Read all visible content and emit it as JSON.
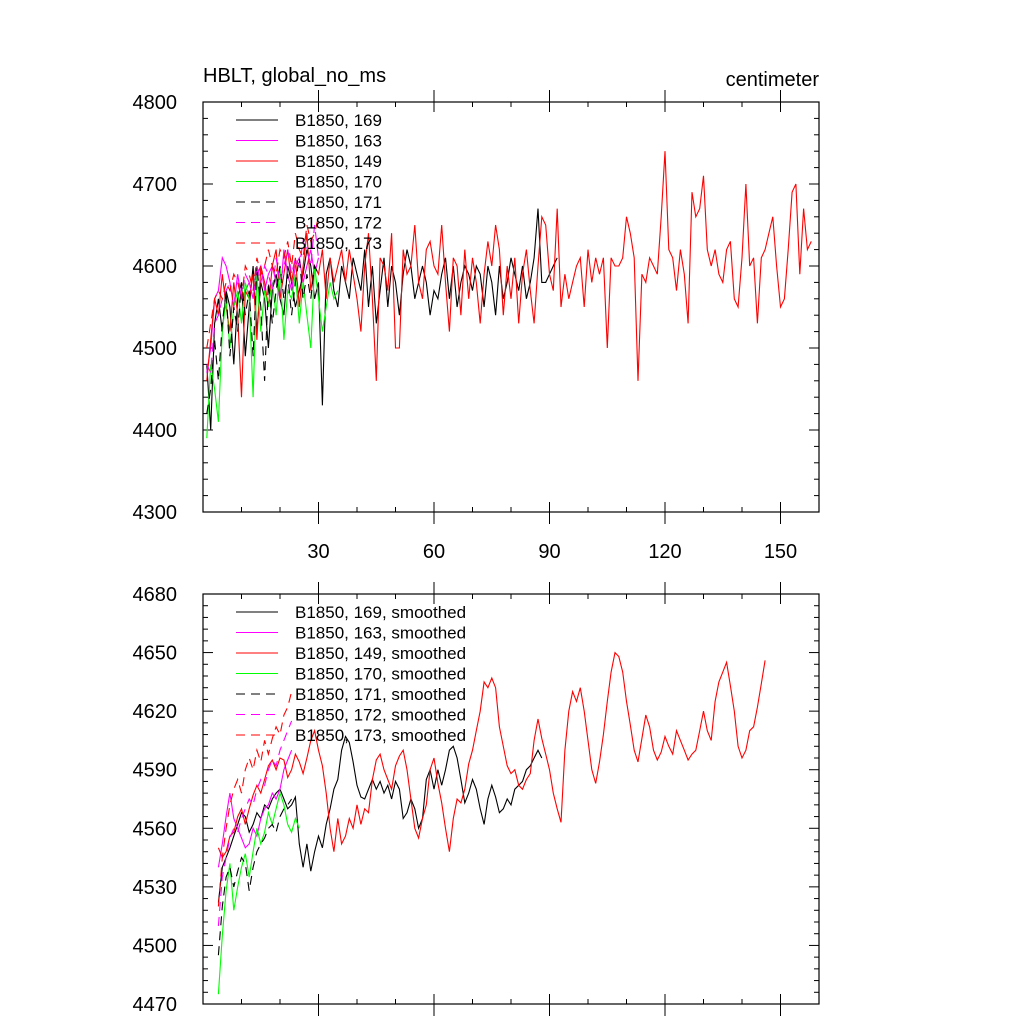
{
  "chart_data": [
    {
      "type": "line",
      "title_left": "HBLT, global_no_ms",
      "title_right": "centimeter",
      "xlim": [
        0,
        160
      ],
      "ylim": [
        4300,
        4800
      ],
      "xticks": [
        30,
        60,
        90,
        120,
        150
      ],
      "yticks": [
        4300,
        4400,
        4500,
        4600,
        4700,
        4800
      ],
      "series": [
        {
          "name": "B1850, 169",
          "label": "B1850, 169",
          "color": "#000000",
          "dash": false,
          "x0": 1,
          "values": [
            4480,
            4400,
            4530,
            4560,
            4520,
            4570,
            4550,
            4480,
            4560,
            4580,
            4490,
            4550,
            4600,
            4520,
            4580,
            4560,
            4500,
            4570,
            4590,
            4560,
            4540,
            4600,
            4580,
            4550,
            4570,
            4590,
            4620,
            4600,
            4560,
            4580,
            4430,
            4590,
            4610,
            4570,
            4550,
            4600,
            4580,
            4560,
            4610,
            4590,
            4570,
            4620,
            4550,
            4600,
            4530,
            4570,
            4610,
            4550,
            4600,
            4580,
            4540,
            4590,
            4620,
            4600,
            4560,
            4580,
            4600,
            4580,
            4540,
            4570,
            4560,
            4590,
            4610,
            4560,
            4600,
            4550,
            4580,
            4600,
            4590,
            4570,
            4600,
            4590,
            4550,
            4600,
            4580,
            4540,
            4600,
            4560,
            4580,
            4610,
            4590,
            4570,
            4600,
            4560,
            4580,
            4610,
            4670,
            4580,
            4580,
            4590,
            4600,
            4610
          ]
        },
        {
          "name": "B1850, 163",
          "label": "B1850, 163",
          "color": "#ff00ff",
          "dash": false,
          "x0": 1,
          "values": [
            4470,
            4500,
            4560,
            4570,
            4610,
            4600,
            4580,
            4550,
            4590,
            4560,
            4570,
            4580,
            4560,
            4590,
            4600,
            4570,
            4590,
            4600,
            4580,
            4560,
            4620,
            4590,
            4570,
            4600,
            4610,
            4580,
            4600,
            4620,
            4590,
            4610
          ]
        },
        {
          "name": "B1850, 149",
          "label": "B1850, 149",
          "color": "#ff0000",
          "dash": false,
          "x0": 1,
          "values": [
            4460,
            4510,
            4560,
            4540,
            4590,
            4550,
            4520,
            4580,
            4540,
            4440,
            4570,
            4560,
            4590,
            4510,
            4600,
            4580,
            4550,
            4600,
            4620,
            4560,
            4590,
            4620,
            4580,
            4610,
            4550,
            4600,
            4640,
            4570,
            4600,
            4590,
            4620,
            4560,
            4610,
            4580,
            4600,
            4620,
            4580,
            4620,
            4590,
            4560,
            4520,
            4600,
            4640,
            4560,
            4460,
            4610,
            4600,
            4570,
            4640,
            4500,
            4500,
            4620,
            4590,
            4600,
            4650,
            4580,
            4560,
            4620,
            4630,
            4600,
            4590,
            4650,
            4580,
            4520,
            4610,
            4600,
            4540,
            4620,
            4560,
            4610,
            4580,
            4530,
            4590,
            4630,
            4600,
            4650,
            4620,
            4540,
            4600,
            4560,
            4610,
            4530,
            4590,
            4620,
            4570,
            4530,
            4600,
            4660,
            4650,
            4590,
            4570,
            4670,
            4550,
            4590,
            4560,
            4580,
            4600,
            4610,
            4550,
            4620,
            4580,
            4610,
            4590,
            4610,
            4500,
            4610,
            4600,
            4600,
            4610,
            4660,
            4640,
            4610,
            4460,
            4590,
            4580,
            4610,
            4600,
            4590,
            4660,
            4740,
            4620,
            4610,
            4570,
            4620,
            4590,
            4530,
            4690,
            4660,
            4670,
            4710,
            4620,
            4600,
            4620,
            4590,
            4580,
            4620,
            4630,
            4560,
            4550,
            4610,
            4700,
            4600,
            4610,
            4530,
            4610,
            4620,
            4640,
            4660,
            4600,
            4550,
            4560,
            4620,
            4690,
            4700,
            4590,
            4670,
            4620,
            4630
          ]
        },
        {
          "name": "B1850, 170",
          "label": "B1850, 170",
          "color": "#00ff00",
          "dash": false,
          "x0": 1,
          "values": [
            4390,
            4480,
            4450,
            4410,
            4520,
            4560,
            4500,
            4550,
            4570,
            4530,
            4580,
            4560,
            4440,
            4590,
            4520,
            4570,
            4550,
            4580,
            4540,
            4600,
            4510,
            4570,
            4560,
            4590,
            4530,
            4580,
            4540,
            4500,
            4600,
            4560,
            4520,
            4550,
            4580,
            4560,
            4570
          ]
        },
        {
          "name": "B1850, 171",
          "label": "B1850, 171",
          "color": "#000000",
          "dash": true,
          "x0": 1,
          "values": [
            4420,
            4450,
            4510,
            4460,
            4530,
            4570,
            4490,
            4550,
            4520,
            4580,
            4540,
            4570,
            4490,
            4600,
            4550,
            4460,
            4580,
            4530,
            4570,
            4600,
            4560,
            4590,
            4540,
            4580,
            4610,
            4560,
            4590,
            4560,
            4600,
            4590
          ]
        },
        {
          "name": "B1850, 172",
          "label": "B1850, 172",
          "color": "#ff00ff",
          "dash": true,
          "x0": 1,
          "values": [
            4480,
            4470,
            4530,
            4540,
            4560,
            4570,
            4580,
            4550,
            4590,
            4560,
            4590,
            4580,
            4560,
            4600,
            4580,
            4600,
            4590,
            4570,
            4610,
            4580,
            4600,
            4620,
            4590,
            4610,
            4600,
            4630,
            4620,
            4600,
            4650,
            4610
          ]
        },
        {
          "name": "B1850, 173",
          "label": "B1850, 173",
          "color": "#ff0000",
          "dash": true,
          "x0": 1,
          "values": [
            4500,
            4530,
            4560,
            4570,
            4560,
            4580,
            4570,
            4590,
            4580,
            4560,
            4600,
            4590,
            4570,
            4610,
            4590,
            4600,
            4620,
            4600,
            4590,
            4620,
            4610,
            4630,
            4600,
            4640,
            4620,
            4610,
            4650,
            4630,
            4640,
            4660
          ]
        }
      ]
    },
    {
      "type": "line",
      "xlim": [
        0,
        160
      ],
      "ylim": [
        4470,
        4680
      ],
      "xticks": [
        30,
        60,
        90,
        120,
        150
      ],
      "xtick_labels_shown": false,
      "yticks": [
        4470,
        4500,
        4530,
        4560,
        4590,
        4620,
        4650,
        4680
      ],
      "series": [
        {
          "name": "B1850, 169, smoothed",
          "label": "B1850, 169, smoothed",
          "color": "#000000",
          "dash": false,
          "x0": 4,
          "values": [
            4522,
            4540,
            4545,
            4550,
            4556,
            4562,
            4568,
            4566,
            4558,
            4562,
            4568,
            4565,
            4572,
            4570,
            4575,
            4578,
            4580,
            4575,
            4570,
            4572,
            4576,
            4552,
            4540,
            4552,
            4538,
            4548,
            4556,
            4550,
            4562,
            4570,
            4580,
            4585,
            4600,
            4607,
            4604,
            4594,
            4582,
            4576,
            4575,
            4580,
            4585,
            4580,
            4584,
            4578,
            4582,
            4575,
            4584,
            4580,
            4565,
            4568,
            4575,
            4570,
            4560,
            4565,
            4585,
            4590,
            4580,
            4590,
            4582,
            4590,
            4600,
            4602,
            4596,
            4585,
            4573,
            4578,
            4585,
            4580,
            4570,
            4562,
            4575,
            4582,
            4576,
            4568,
            4570,
            4575,
            4572,
            4580,
            4582,
            4584,
            4590,
            4592,
            4596,
            4600,
            4596
          ]
        },
        {
          "name": "B1850, 163, smoothed",
          "label": "B1850, 163, smoothed",
          "color": "#ff00ff",
          "dash": false,
          "x0": 4,
          "values": [
            4540,
            4552,
            4566,
            4578,
            4565,
            4560,
            4555,
            4550,
            4552,
            4560,
            4556,
            4565,
            4570,
            4572,
            4578,
            4575,
            4580,
            4590,
            4595,
            4600
          ]
        },
        {
          "name": "B1850, 149, smoothed",
          "label": "B1850, 149, smoothed",
          "color": "#ff0000",
          "dash": false,
          "x0": 4,
          "values": [
            4550,
            4545,
            4548,
            4556,
            4558,
            4566,
            4570,
            4562,
            4570,
            4577,
            4582,
            4578,
            4585,
            4592,
            4595,
            4590,
            4596,
            4595,
            4586,
            4590,
            4598,
            4594,
            4588,
            4596,
            4605,
            4610,
            4600,
            4592,
            4578,
            4560,
            4548,
            4565,
            4552,
            4556,
            4565,
            4560,
            4572,
            4562,
            4570,
            4568,
            4585,
            4595,
            4598,
            4590,
            4585,
            4580,
            4592,
            4597,
            4600,
            4590,
            4575,
            4560,
            4555,
            4565,
            4572,
            4590,
            4596,
            4583,
            4573,
            4560,
            4548,
            4565,
            4575,
            4573,
            4580,
            4593,
            4600,
            4610,
            4620,
            4635,
            4632,
            4637,
            4632,
            4612,
            4602,
            4592,
            4588,
            4590,
            4582,
            4580,
            4585,
            4588,
            4605,
            4616,
            4606,
            4598,
            4590,
            4578,
            4570,
            4563,
            4600,
            4620,
            4630,
            4625,
            4632,
            4620,
            4605,
            4590,
            4583,
            4594,
            4608,
            4625,
            4640,
            4650,
            4648,
            4640,
            4625,
            4613,
            4600,
            4594,
            4606,
            4618,
            4612,
            4600,
            4595,
            4599,
            4607,
            4602,
            4598,
            4610,
            4605,
            4600,
            4595,
            4598,
            4600,
            4610,
            4620,
            4610,
            4605,
            4625,
            4635,
            4640,
            4645,
            4633,
            4620,
            4602,
            4596,
            4600,
            4610,
            4612,
            4622,
            4634,
            4646
          ]
        },
        {
          "name": "B1850, 170, smoothed",
          "label": "B1850, 170, smoothed",
          "color": "#00ff00",
          "dash": false,
          "x0": 4,
          "values": [
            4475,
            4505,
            4528,
            4542,
            4518,
            4530,
            4540,
            4547,
            4535,
            4548,
            4560,
            4552,
            4558,
            4568,
            4562,
            4570,
            4578,
            4572,
            4562,
            4558,
            4565,
            4560
          ]
        },
        {
          "name": "B1850, 171, smoothed",
          "label": "B1850, 171, smoothed",
          "color": "#000000",
          "dash": true,
          "x0": 4,
          "values": [
            4495,
            4520,
            4535,
            4540,
            4530,
            4538,
            4545,
            4542,
            4528,
            4540,
            4548,
            4552,
            4555,
            4560,
            4562,
            4558,
            4566,
            4570,
            4572,
            4575
          ]
        },
        {
          "name": "B1850, 172, smoothed",
          "label": "B1850, 172, smoothed",
          "color": "#ff00ff",
          "dash": true,
          "x0": 4,
          "values": [
            4510,
            4535,
            4545,
            4555,
            4560,
            4558,
            4565,
            4570,
            4575,
            4572,
            4580,
            4585,
            4582,
            4590,
            4595,
            4592,
            4600,
            4605,
            4610,
            4615
          ]
        },
        {
          "name": "B1850, 173, smoothed",
          "label": "B1850, 173, smoothed",
          "color": "#ff0000",
          "dash": true,
          "x0": 4,
          "values": [
            4520,
            4545,
            4560,
            4572,
            4580,
            4585,
            4578,
            4590,
            4596,
            4590,
            4600,
            4594,
            4605,
            4598,
            4606,
            4612,
            4608,
            4618,
            4622,
            4630
          ]
        }
      ]
    }
  ]
}
